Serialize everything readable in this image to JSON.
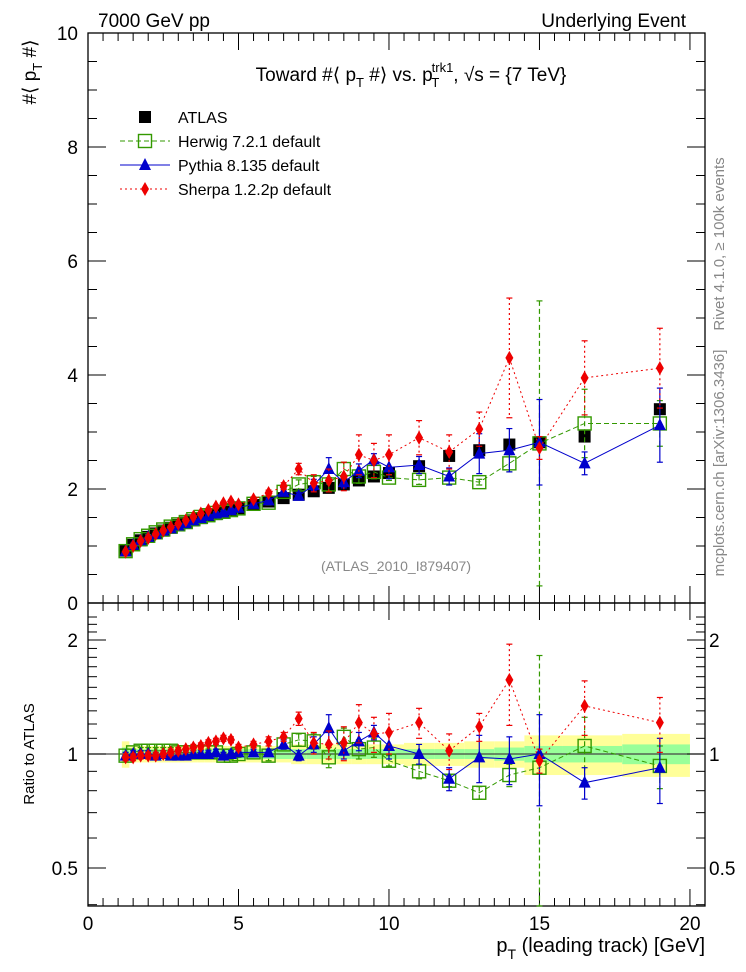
{
  "header": {
    "left_label": "7000 GeV pp",
    "right_label": "Underlying Event"
  },
  "side_labels": {
    "rivet": "Rivet 4.1.0, ≥ 100k events",
    "mcplots": "mcplots.cern.ch [arXiv:1306.3436]"
  },
  "chart_data": [
    {
      "type": "scatter",
      "panel": "main",
      "title": "Toward #⟨ p_T #⟩ vs. p_T^trk1, √s = {7 TeV}",
      "title_parts": {
        "pre": "Toward #⟨ p",
        "sub1": "T",
        "mid": " #⟩ vs. p",
        "sup": "trk1",
        "sub2": "T",
        "post": ", √s = {7 TeV}"
      },
      "analysis_label": "(ATLAS_2010_I879407)",
      "xlabel": "p_T (leading track) [GeV]",
      "ylabel": "#⟨ p_T #⟩",
      "xlim": [
        0,
        20.5
      ],
      "ylim": [
        0,
        10
      ],
      "yticks": [
        0,
        2,
        4,
        6,
        8,
        10
      ],
      "legend_position": "top-left",
      "x": [
        1.25,
        1.5,
        1.75,
        2.0,
        2.25,
        2.5,
        2.75,
        3.0,
        3.25,
        3.5,
        3.75,
        4.0,
        4.25,
        4.5,
        4.75,
        5.0,
        5.5,
        6.0,
        6.5,
        7.0,
        7.5,
        8.0,
        8.5,
        9.0,
        9.5,
        10.0,
        11.0,
        12.0,
        13.0,
        14.0,
        15.0,
        16.5,
        19.0
      ],
      "series": [
        {
          "name": "ATLAS",
          "color": "#000000",
          "marker": "square-filled",
          "line": "none",
          "values": [
            0.92,
            1.02,
            1.1,
            1.16,
            1.22,
            1.27,
            1.32,
            1.37,
            1.41,
            1.45,
            1.49,
            1.53,
            1.56,
            1.6,
            1.63,
            1.66,
            1.72,
            1.78,
            1.84,
            1.9,
            1.96,
            2.02,
            2.08,
            2.15,
            2.22,
            2.28,
            2.4,
            2.58,
            2.68,
            2.78,
            2.82,
            2.92,
            3.4
          ]
        },
        {
          "name": "Herwig 7.2.1 default",
          "color": "#339900",
          "marker": "square-open",
          "line": "dashed",
          "values": [
            0.91,
            1.03,
            1.12,
            1.18,
            1.24,
            1.29,
            1.34,
            1.38,
            1.42,
            1.47,
            1.51,
            1.54,
            1.58,
            1.6,
            1.63,
            1.66,
            1.74,
            1.76,
            1.95,
            2.08,
            2.12,
            2.08,
            2.35,
            2.22,
            2.3,
            2.2,
            2.16,
            2.2,
            2.12,
            2.45,
            2.8,
            3.15,
            3.15
          ],
          "err": [
            0.02,
            0.02,
            0.02,
            0.02,
            0.02,
            0.02,
            0.02,
            0.02,
            0.02,
            0.02,
            0.02,
            0.02,
            0.02,
            0.02,
            0.02,
            0.02,
            0.03,
            0.04,
            0.05,
            0.08,
            0.1,
            0.12,
            0.12,
            0.12,
            0.12,
            0.05,
            0.08,
            0.05,
            0.05,
            0.15,
            2.5,
            0.6,
            0.4
          ]
        },
        {
          "name": "Pythia 8.135 default",
          "color": "#0000cc",
          "marker": "triangle-filled",
          "line": "solid",
          "values": [
            0.91,
            1.02,
            1.1,
            1.16,
            1.21,
            1.27,
            1.31,
            1.36,
            1.4,
            1.45,
            1.49,
            1.53,
            1.57,
            1.59,
            1.63,
            1.67,
            1.74,
            1.8,
            1.95,
            1.88,
            2.07,
            2.35,
            2.12,
            2.32,
            2.52,
            2.38,
            2.42,
            2.22,
            2.62,
            2.68,
            2.82,
            2.45,
            3.12
          ],
          "err": [
            0.02,
            0.02,
            0.02,
            0.02,
            0.02,
            0.02,
            0.02,
            0.02,
            0.02,
            0.02,
            0.02,
            0.02,
            0.02,
            0.02,
            0.02,
            0.02,
            0.03,
            0.04,
            0.05,
            0.06,
            0.1,
            0.2,
            0.1,
            0.12,
            0.1,
            0.2,
            0.15,
            0.15,
            0.35,
            0.38,
            0.75,
            0.2,
            0.65
          ]
        },
        {
          "name": "Sherpa 1.2.2p default",
          "color": "#ee0000",
          "marker": "diamond-filled",
          "line": "dotted",
          "values": [
            0.9,
            1.0,
            1.09,
            1.14,
            1.21,
            1.27,
            1.33,
            1.39,
            1.45,
            1.51,
            1.57,
            1.63,
            1.69,
            1.75,
            1.78,
            1.73,
            1.82,
            1.93,
            2.05,
            2.35,
            2.1,
            2.15,
            2.22,
            2.6,
            2.5,
            2.6,
            2.9,
            2.65,
            3.05,
            4.3,
            2.72,
            3.95,
            4.12
          ],
          "err": [
            0.02,
            0.02,
            0.02,
            0.02,
            0.02,
            0.02,
            0.02,
            0.02,
            0.02,
            0.02,
            0.02,
            0.03,
            0.03,
            0.03,
            0.03,
            0.03,
            0.04,
            0.05,
            0.06,
            0.1,
            0.15,
            0.2,
            0.25,
            0.35,
            0.3,
            0.35,
            0.3,
            0.3,
            0.3,
            1.05,
            0.2,
            0.65,
            0.7
          ]
        }
      ]
    },
    {
      "type": "scatter",
      "panel": "ratio",
      "ylabel": "Ratio to ATLAS",
      "xlabel": "p_T (leading track) [GeV]",
      "xlim": [
        0,
        20.5
      ],
      "ylim": [
        0.35,
        2.35
      ],
      "yticks": [
        0.5,
        1,
        2
      ],
      "xticks": [
        0,
        5,
        10,
        15,
        20
      ],
      "band_inner_half_width": [
        0.04,
        0.03,
        0.03,
        0.03,
        0.03,
        0.03,
        0.03,
        0.03,
        0.03,
        0.03,
        0.03,
        0.03,
        0.03,
        0.03,
        0.03,
        0.03,
        0.03,
        0.03,
        0.03,
        0.03,
        0.03,
        0.03,
        0.03,
        0.03,
        0.03,
        0.03,
        0.03,
        0.03,
        0.03,
        0.04,
        0.05,
        0.05,
        0.06
      ],
      "band_outer_half_width": [
        0.08,
        0.05,
        0.05,
        0.05,
        0.05,
        0.05,
        0.05,
        0.05,
        0.05,
        0.05,
        0.05,
        0.05,
        0.05,
        0.05,
        0.05,
        0.05,
        0.05,
        0.05,
        0.05,
        0.06,
        0.06,
        0.06,
        0.06,
        0.06,
        0.06,
        0.06,
        0.07,
        0.07,
        0.08,
        0.08,
        0.12,
        0.12,
        0.13
      ],
      "series": [
        {
          "name": "Herwig 7.2.1 default",
          "color": "#339900",
          "values": [
            0.99,
            1.01,
            1.02,
            1.02,
            1.02,
            1.02,
            1.02,
            1.01,
            1.01,
            1.01,
            1.01,
            1.01,
            1.01,
            0.99,
            0.99,
            1.0,
            1.01,
            0.99,
            1.06,
            1.09,
            1.08,
            0.98,
            1.11,
            1.03,
            1.04,
            0.96,
            0.9,
            0.85,
            0.79,
            0.88,
            0.92,
            1.05,
            0.93
          ],
          "err": [
            0.02,
            0.02,
            0.02,
            0.02,
            0.02,
            0.02,
            0.02,
            0.02,
            0.02,
            0.02,
            0.02,
            0.02,
            0.02,
            0.02,
            0.02,
            0.02,
            0.02,
            0.03,
            0.03,
            0.04,
            0.05,
            0.06,
            0.06,
            0.06,
            0.06,
            0.03,
            0.04,
            0.03,
            0.03,
            0.06,
            0.9,
            0.2,
            0.12
          ]
        },
        {
          "name": "Pythia 8.135 default",
          "color": "#0000cc",
          "values": [
            0.99,
            1.0,
            1.0,
            1.0,
            0.99,
            1.0,
            0.99,
            0.99,
            0.99,
            1.0,
            1.0,
            1.0,
            1.01,
            0.99,
            1.0,
            1.01,
            1.01,
            1.01,
            1.06,
            0.99,
            1.06,
            1.17,
            1.02,
            1.08,
            1.14,
            1.05,
            1.0,
            0.86,
            0.98,
            0.97,
            1.0,
            0.84,
            0.92
          ],
          "err": [
            0.02,
            0.02,
            0.02,
            0.02,
            0.02,
            0.02,
            0.02,
            0.02,
            0.02,
            0.02,
            0.02,
            0.02,
            0.02,
            0.02,
            0.02,
            0.02,
            0.02,
            0.02,
            0.03,
            0.03,
            0.05,
            0.1,
            0.05,
            0.06,
            0.05,
            0.08,
            0.06,
            0.06,
            0.14,
            0.14,
            0.27,
            0.08,
            0.18
          ]
        },
        {
          "name": "Sherpa 1.2.2p default",
          "color": "#ee0000",
          "values": [
            0.98,
            0.98,
            0.99,
            0.99,
            0.99,
            1.0,
            1.01,
            1.02,
            1.03,
            1.04,
            1.05,
            1.07,
            1.08,
            1.1,
            1.09,
            1.04,
            1.06,
            1.08,
            1.11,
            1.24,
            1.07,
            1.06,
            1.07,
            1.21,
            1.13,
            1.14,
            1.21,
            1.02,
            1.18,
            1.57,
            0.96,
            1.34,
            1.21
          ],
          "err": [
            0.02,
            0.02,
            0.02,
            0.02,
            0.02,
            0.02,
            0.02,
            0.02,
            0.02,
            0.02,
            0.02,
            0.02,
            0.02,
            0.02,
            0.02,
            0.02,
            0.02,
            0.03,
            0.03,
            0.05,
            0.07,
            0.09,
            0.11,
            0.14,
            0.12,
            0.14,
            0.11,
            0.11,
            0.1,
            0.38,
            0.07,
            0.22,
            0.2
          ]
        }
      ]
    }
  ]
}
